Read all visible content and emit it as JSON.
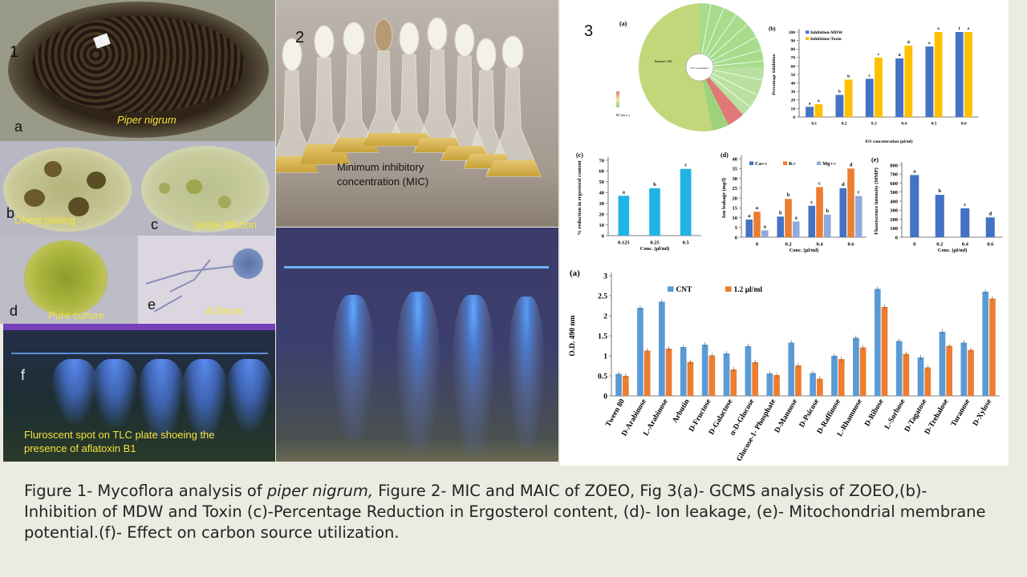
{
  "panels": {
    "p1": {
      "number": "1",
      "sub_a": "a",
      "species": "Piper nigrum"
    },
    "p1b": {
      "letter": "b",
      "label": "Direct plating"
    },
    "p1c": {
      "letter": "c",
      "label": "Serial dilution"
    },
    "p1d": {
      "letter": "d",
      "label": "Pure culture"
    },
    "p1e": {
      "letter": "e",
      "label": "A.flavus"
    },
    "p1f": {
      "letter": "f",
      "label": "Fluroscent spot on TLC plate shoeing the presence of aflatoxin B1"
    },
    "p2": {
      "number": "2",
      "label": "Minimum  inhibitory concentration (MIC)"
    },
    "p3": {
      "number": "3"
    }
  },
  "sunburst": {
    "tag": "(a)",
    "center_label": "EO Constituent",
    "big_segment_label": "Benzene 18%",
    "legend_title": "RT (mi n.)"
  },
  "caption": {
    "part1": "Figure 1- Mycoflora analysis of ",
    "part1_italic": "piper nigrum,",
    "part2": " Figure 2- MIC and MAIC of ZOEO, Fig 3(a)- GCMS analysis of ZOEO,(b)- Inhibition of MDW and Toxin (c)-Percentage Reduction in Ergosterol content, (d)- Ion leakage, (e)- Mitochondrial membrane potential.(f)- Effect on carbon source utilization."
  },
  "chart_data": [
    {
      "id": "b",
      "type": "bar",
      "tag": "(b)",
      "xlabel": "EO concentration (µl/ml)",
      "ylabel": "Percentage Inhibition",
      "categories": [
        "0.1",
        "0.2",
        "0.3",
        "0.4",
        "0.5",
        "0.6"
      ],
      "ylim": [
        0,
        100
      ],
      "yticks": [
        0,
        10,
        20,
        30,
        40,
        50,
        60,
        70,
        80,
        90,
        100
      ],
      "series": [
        {
          "name": "Inhibition-MDW",
          "color": "#4472c4",
          "values": [
            12,
            26,
            45,
            69,
            83,
            100
          ],
          "letters": [
            "a",
            "b",
            "c",
            "d",
            "e",
            "f"
          ]
        },
        {
          "name": "Inhibition-Toxin",
          "color": "#ffc000",
          "values": [
            15,
            44,
            70,
            84,
            100,
            100
          ],
          "letters": [
            "a",
            "b",
            "c",
            "d",
            "e",
            "e"
          ]
        }
      ]
    },
    {
      "id": "c",
      "type": "bar",
      "tag": "(c)",
      "xlabel": "Conc. (µl/ml)",
      "ylabel": "% reduction in ergosterol content",
      "categories": [
        "0.125",
        "0.25",
        "0.5"
      ],
      "ylim": [
        0,
        70
      ],
      "yticks": [
        0,
        10,
        20,
        30,
        40,
        50,
        60,
        70
      ],
      "series": [
        {
          "name": "",
          "color": "#1fb3e6",
          "values": [
            37,
            44,
            62
          ],
          "letters": [
            "a",
            "b",
            "c"
          ]
        }
      ]
    },
    {
      "id": "d",
      "type": "bar",
      "tag": "(d)",
      "xlabel": "Conc. (µl/ml)",
      "ylabel": "Ion leakage (mg/l)",
      "categories": [
        "0",
        "0.2",
        "0.4",
        "0.6"
      ],
      "ylim": [
        0,
        40
      ],
      "yticks": [
        0,
        5,
        10,
        15,
        20,
        25,
        30,
        35,
        40
      ],
      "series": [
        {
          "name": "Ca++",
          "color": "#4472c4",
          "values": [
            9,
            10.5,
            16,
            25
          ],
          "letters": [
            "a",
            "b",
            "c",
            "d"
          ]
        },
        {
          "name": "K+",
          "color": "#ed7d31",
          "values": [
            13,
            19.5,
            25.5,
            35
          ],
          "letters": [
            "a",
            "b",
            "c",
            "d"
          ]
        },
        {
          "name": "Mg++",
          "color": "#8faadc",
          "values": [
            3.5,
            8,
            11.5,
            21
          ],
          "letters": [
            "a",
            "a",
            "b",
            "c"
          ]
        }
      ]
    },
    {
      "id": "e",
      "type": "bar",
      "tag": "(e)",
      "xlabel": "Conc. (µl/ml)",
      "ylabel": "Fluorescence intensity (MMP)",
      "categories": [
        "0",
        "0.2",
        "0.4",
        "0.6"
      ],
      "ylim": [
        0,
        800
      ],
      "yticks": [
        0,
        100,
        200,
        300,
        400,
        500,
        600,
        700,
        800
      ],
      "series": [
        {
          "name": "",
          "color": "#4472c4",
          "values": [
            690,
            470,
            320,
            220
          ],
          "letters": [
            "a",
            "b",
            "c",
            "d"
          ]
        }
      ]
    },
    {
      "id": "f",
      "type": "bar",
      "tag": "(a)",
      "xlabel": "",
      "ylabel": "O.D. 490 nm",
      "categories": [
        "Tween 80",
        "D-Arabinose",
        "L-Arabinose",
        "Arbutin",
        "D-Fructose",
        "D-Galactose",
        "α-D-Glucose",
        "Glucose-1- Phosphate",
        "D-Mannose",
        "D-Psicose",
        "D-Raffinose",
        "L-Rhamnose",
        "D-Ribose",
        "L-Sorbose",
        "D-Tagatose",
        "D-Trehalose",
        "Turanose",
        "D-Xylose"
      ],
      "ylim": [
        0,
        3
      ],
      "yticks": [
        "0",
        "0.5",
        "1",
        "1.5",
        "2",
        "2.5",
        "3"
      ],
      "series": [
        {
          "name": "CNT",
          "color": "#5b9bd5",
          "values": [
            0.55,
            2.2,
            2.35,
            1.22,
            1.28,
            1.06,
            1.24,
            0.56,
            1.33,
            0.57,
            1.0,
            1.45,
            2.67,
            1.37,
            0.96,
            1.6,
            1.33,
            2.6
          ]
        },
        {
          "name": "1.2 µl/ml",
          "color": "#ed7d31",
          "values": [
            0.5,
            1.13,
            1.18,
            0.85,
            1.01,
            0.66,
            0.84,
            0.52,
            0.76,
            0.43,
            0.92,
            1.21,
            2.22,
            1.05,
            0.71,
            1.25,
            1.15,
            2.43
          ]
        }
      ]
    }
  ]
}
